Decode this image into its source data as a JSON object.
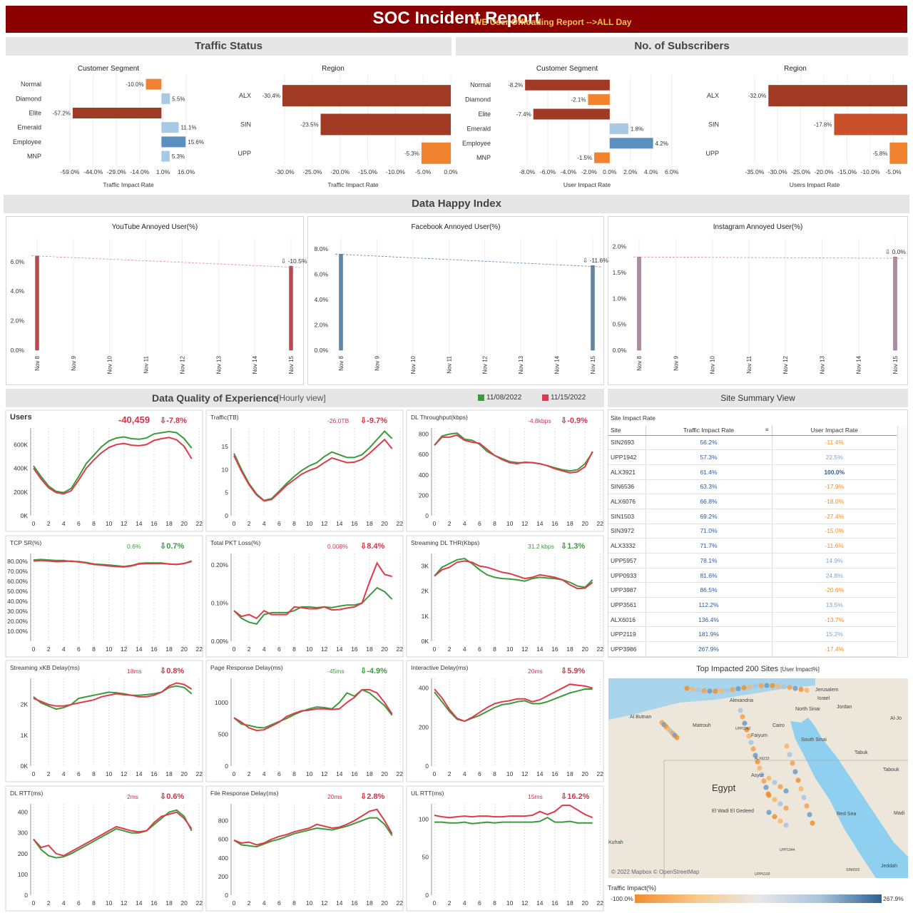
{
  "header": {
    "title": "SOC Incident Report",
    "subtitle": "WE User Offloading Report -->ALL Day"
  },
  "sections": {
    "traffic_status": "Traffic Status",
    "subscribers": "No. of Subscribers",
    "happy_index": "Data Happy Index",
    "qoe": "Data Quality of Experience",
    "qoe_sub": "[Hourly view]",
    "site_summary": "Site Summary View"
  },
  "legend": {
    "date1": "11/08/2022",
    "date2": "11/15/2022",
    "color1": "#3c9a3c",
    "color2": "#e03a4a"
  },
  "bar_panels": [
    {
      "title": "Customer Segment",
      "xlabel": "Traffic Impact Rate",
      "categories": [
        "Normal",
        "Diamond",
        "Elite",
        "Emerald",
        "Employee",
        "MNP"
      ],
      "values": [
        -10.0,
        5.5,
        -57.2,
        11.1,
        15.6,
        5.3
      ],
      "labels": [
        "-10.0%",
        "5.5%",
        "-57.2%",
        "11.1%",
        "15.6%",
        "5.3%"
      ],
      "ticks": [
        "-59.0%",
        "-44.0%",
        "-29.0%",
        "-14.0%",
        "1.0%",
        "16.0%"
      ],
      "xlim": [
        -59,
        21
      ]
    },
    {
      "title": "Region",
      "xlabel": "Traffic Impact Rate",
      "categories": [
        "ALX",
        "SIN",
        "UPP"
      ],
      "values": [
        -30.4,
        -23.5,
        -5.3
      ],
      "labels": [
        "-30.4%",
        "-23.5%",
        "-5.3%"
      ],
      "ticks": [
        "-30.0%",
        "-25.0%",
        "-20.0%",
        "-15.0%",
        "-10.0%",
        "-5.0%",
        "0.0%"
      ],
      "xlim": [
        -30.4,
        0
      ]
    },
    {
      "title": "Customer Segment",
      "xlabel": "User Impact Rate",
      "categories": [
        "Normal",
        "Diamond",
        "Elite",
        "Emerald",
        "Employee",
        "MNP"
      ],
      "values": [
        -8.2,
        -2.1,
        -7.4,
        1.8,
        4.2,
        -1.5
      ],
      "labels": [
        "-8.2%",
        "-2.1%",
        "-7.4%",
        "1.8%",
        "4.2%",
        "-1.5%"
      ],
      "ticks": [
        "-8.0%",
        "-6.0%",
        "-4.0%",
        "-2.0%",
        "0.0%",
        "2.0%",
        "4.0%",
        "6.0%"
      ],
      "xlim": [
        -8.9,
        6.3
      ]
    },
    {
      "title": "Region",
      "xlabel": "Users Impact Rate",
      "categories": [
        "ALX",
        "SIN",
        "UPP"
      ],
      "values": [
        -32.0,
        -17.8,
        -5.8
      ],
      "labels": [
        "-32.0%",
        "-17.8%",
        "-5.8%"
      ],
      "ticks": [
        "-35.0%",
        "-30.0%",
        "-25.0%",
        "-20.0%",
        "-15.0%",
        "-10.0%",
        "-5.0%"
      ],
      "xlim": [
        -36.2,
        -2
      ]
    }
  ],
  "annoyed_panels": [
    {
      "title": "YouTube Annoyed User(%)",
      "ticks": [
        "0.0%",
        "2.0%",
        "4.0%",
        "6.0%"
      ],
      "ymax": 7.2,
      "tickvals": [
        0,
        2,
        4,
        6
      ],
      "values": [
        6.4,
        5.7
      ],
      "change": "-10.5%",
      "color": "#c0474d"
    },
    {
      "title": "Facebook Annoyed User(%)",
      "ticks": [
        "0.0%",
        "2.0%",
        "4.0%",
        "6.0%",
        "8.0%"
      ],
      "ymax": 8.4,
      "tickvals": [
        0,
        2,
        4,
        6,
        8
      ],
      "values": [
        7.6,
        6.7
      ],
      "change": "-11.6%",
      "color": "#5f86ad"
    },
    {
      "title": "Instagram Annoyed User(%)",
      "ticks": [
        "0.0%",
        "0.5%",
        "1.0%",
        "1.5%",
        "2.0%"
      ],
      "ymax": 2.05,
      "tickvals": [
        0,
        0.5,
        1,
        1.5,
        2
      ],
      "values": [
        1.8,
        1.8
      ],
      "change": "0.0%",
      "color": "#b08aa0"
    }
  ],
  "annoyed_x": [
    "Nov 8",
    "Nov 9",
    "Nov 10",
    "Nov 11",
    "Nov 12",
    "Nov 13",
    "Nov 14",
    "Nov 15"
  ],
  "hours": [
    "0",
    "2",
    "4",
    "6",
    "8",
    "10",
    "12",
    "14",
    "16",
    "18",
    "20",
    "22"
  ],
  "kpis": [
    {
      "title": "Users",
      "delta": "-40,459",
      "pct": "-7.8%",
      "yticks": [
        "0K",
        "200K",
        "400K",
        "600K"
      ],
      "tickvals": [
        0,
        200,
        400,
        600
      ],
      "ymax": 740,
      "green": [
        420,
        330,
        250,
        205,
        195,
        230,
        330,
        440,
        510,
        580,
        630,
        655,
        665,
        650,
        645,
        655,
        690,
        700,
        710,
        700,
        650,
        570
      ],
      "red": [
        400,
        310,
        235,
        195,
        185,
        210,
        300,
        400,
        470,
        530,
        575,
        600,
        610,
        595,
        590,
        600,
        635,
        650,
        660,
        640,
        585,
        480
      ],
      "deltaColor": "#d0344a",
      "pctColor": "#d0344a",
      "big": true
    },
    {
      "title": "Traffic(TB)",
      "delta": "-26.0TB",
      "pct": "-9.7%",
      "yticks": [
        "0",
        "5",
        "10",
        "15"
      ],
      "tickvals": [
        0,
        5,
        10,
        15
      ],
      "ymax": 19,
      "green": [
        13.5,
        10,
        7,
        4.7,
        3.3,
        3.7,
        5.3,
        7,
        8.5,
        9.8,
        10.8,
        11.5,
        12.8,
        13.8,
        13.2,
        12.6,
        12.6,
        13.2,
        14.7,
        16.5,
        18.3,
        16.7
      ],
      "red": [
        13,
        9.6,
        6.7,
        4.5,
        3.2,
        3.5,
        5,
        6.6,
        7.8,
        9,
        9.8,
        10.4,
        11.5,
        12.5,
        12,
        11.5,
        11.6,
        12.2,
        13.5,
        15,
        16.5,
        14.5
      ],
      "deltaColor": "#d0344a",
      "pctColor": "#d0344a"
    },
    {
      "title": "DL Throughput(kbps)",
      "delta": "-4.8kbps",
      "pct": "-0.9%",
      "yticks": [
        "0",
        "200",
        "400",
        "600",
        "800"
      ],
      "tickvals": [
        0,
        200,
        400,
        600,
        800
      ],
      "ymax": 860,
      "green": [
        690,
        780,
        800,
        810,
        750,
        740,
        700,
        630,
        590,
        560,
        530,
        520,
        520,
        520,
        510,
        490,
        470,
        450,
        440,
        450,
        510,
        620
      ],
      "red": [
        690,
        770,
        770,
        790,
        740,
        720,
        710,
        650,
        590,
        550,
        520,
        510,
        525,
        520,
        510,
        490,
        460,
        440,
        420,
        430,
        480,
        630
      ],
      "deltaColor": "#d0344a",
      "pctColor": "#d0344a"
    },
    {
      "title": "TCP SR(%)",
      "delta": "0.6%",
      "pct": "0.7%",
      "yticks": [
        "10.00%",
        "20.00%",
        "30.00%",
        "40.00%",
        "50.00%",
        "60.00%",
        "70.00%",
        "80.00%"
      ],
      "tickvals": [
        10,
        20,
        30,
        40,
        50,
        60,
        70,
        80
      ],
      "ymax": 88,
      "green": [
        81.5,
        82,
        81.5,
        81,
        81,
        80,
        80,
        79,
        77.5,
        77,
        76.5,
        75.8,
        75,
        76,
        78,
        78.5,
        78.5,
        78.5,
        77.5,
        77,
        78,
        80.5
      ],
      "red": [
        80.5,
        81,
        80.5,
        79.8,
        80,
        80.5,
        79.5,
        78.5,
        77,
        76.5,
        75.5,
        75,
        74.5,
        75.5,
        77.5,
        78,
        78,
        78,
        77.5,
        77,
        78,
        80
      ],
      "deltaColor": "#3c9a3c",
      "pctColor": "#3c9a3c"
    },
    {
      "title": "Total PKT Loss(%)",
      "delta": "0.008%",
      "pct": "8.4%",
      "yticks": [
        "0.00%",
        "0.10%",
        "0.20%"
      ],
      "tickvals": [
        0,
        0.1,
        0.2
      ],
      "ymax": 0.23,
      "green": [
        0.08,
        0.06,
        0.05,
        0.045,
        0.07,
        0.075,
        0.075,
        0.075,
        0.08,
        0.09,
        0.09,
        0.088,
        0.09,
        0.088,
        0.092,
        0.095,
        0.095,
        0.1,
        0.12,
        0.14,
        0.13,
        0.11
      ],
      "red": [
        0.08,
        0.065,
        0.07,
        0.06,
        0.08,
        0.07,
        0.07,
        0.07,
        0.09,
        0.088,
        0.085,
        0.085,
        0.09,
        0.082,
        0.083,
        0.087,
        0.09,
        0.1,
        0.155,
        0.205,
        0.175,
        0.17
      ],
      "deltaColor": "#d0344a",
      "pctColor": "#d0344a"
    },
    {
      "title": "Streaming DL THR(Kbps)",
      "delta": "31.2 kbps",
      "pct": "1.3%",
      "yticks": [
        "0K",
        "1K",
        "2K",
        "3K"
      ],
      "tickvals": [
        0,
        1000,
        2000,
        3000
      ],
      "ymax": 3500,
      "green": [
        2600,
        2950,
        3100,
        3250,
        3300,
        3100,
        2850,
        2650,
        2550,
        2500,
        2480,
        2450,
        2400,
        2500,
        2550,
        2520,
        2500,
        2450,
        2350,
        2200,
        2150,
        2450
      ],
      "red": [
        2600,
        2850,
        2950,
        3150,
        3200,
        3150,
        3000,
        2950,
        2850,
        2750,
        2700,
        2600,
        2500,
        2550,
        2650,
        2600,
        2550,
        2450,
        2250,
        2100,
        2120,
        2350
      ],
      "deltaColor": "#3c9a3c",
      "pctColor": "#3c9a3c"
    },
    {
      "title": "Streaming xKB Delay(ms)",
      "delta": "18ms",
      "pct": "0.8%",
      "yticks": [
        "0K",
        "1K",
        "2K"
      ],
      "tickvals": [
        0,
        1000,
        2000
      ],
      "ymax": 2850,
      "green": [
        2250,
        2050,
        1950,
        1850,
        1900,
        2000,
        2200,
        2250,
        2300,
        2350,
        2400,
        2380,
        2350,
        2300,
        2300,
        2320,
        2350,
        2400,
        2550,
        2600,
        2550,
        2350
      ],
      "red": [
        2200,
        2100,
        2000,
        1950,
        1950,
        2000,
        2050,
        2100,
        2150,
        2250,
        2300,
        2350,
        2320,
        2300,
        2250,
        2250,
        2300,
        2400,
        2600,
        2700,
        2650,
        2500
      ],
      "deltaColor": "#d0344a",
      "pctColor": "#d0344a"
    },
    {
      "title": "Page Response Delay(ms)",
      "delta": "-45ms",
      "pct": "-4.9%",
      "yticks": [
        "0",
        "500",
        "1000"
      ],
      "tickvals": [
        0,
        500,
        1000
      ],
      "ymax": 1380,
      "green": [
        760,
        660,
        640,
        610,
        600,
        650,
        700,
        750,
        810,
        860,
        900,
        930,
        920,
        900,
        1000,
        1150,
        1100,
        1200,
        1150,
        1050,
        950,
        800
      ],
      "red": [
        760,
        690,
        600,
        560,
        570,
        630,
        690,
        780,
        830,
        870,
        880,
        900,
        900,
        890,
        900,
        1000,
        1080,
        1200,
        1200,
        1150,
        1000,
        820
      ],
      "deltaColor": "#3c9a3c",
      "pctColor": "#3c9a3c"
    },
    {
      "title": "Interactive Delay(ms)",
      "delta": "20ms",
      "pct": "5.9%",
      "yticks": [
        "0",
        "200",
        "400"
      ],
      "tickvals": [
        0,
        200,
        400
      ],
      "ymax": 450,
      "green": [
        380,
        330,
        280,
        240,
        230,
        245,
        260,
        280,
        300,
        315,
        320,
        330,
        335,
        320,
        320,
        330,
        345,
        360,
        375,
        385,
        395,
        395
      ],
      "red": [
        395,
        350,
        290,
        245,
        230,
        250,
        275,
        300,
        320,
        330,
        335,
        345,
        345,
        330,
        340,
        360,
        380,
        400,
        420,
        415,
        410,
        400
      ],
      "deltaColor": "#d0344a",
      "pctColor": "#d0344a"
    },
    {
      "title": "DL RTT(ms)",
      "delta": "2ms",
      "pct": "0.6%",
      "yticks": [
        "0",
        "100",
        "200",
        "300",
        "400"
      ],
      "tickvals": [
        0,
        100,
        200,
        300,
        400
      ],
      "ymax": 440,
      "green": [
        270,
        220,
        190,
        180,
        185,
        200,
        220,
        240,
        260,
        280,
        300,
        320,
        310,
        300,
        300,
        310,
        340,
        370,
        400,
        410,
        380,
        310
      ],
      "red": [
        270,
        230,
        240,
        200,
        190,
        210,
        230,
        250,
        270,
        290,
        310,
        330,
        320,
        310,
        305,
        310,
        350,
        380,
        390,
        400,
        370,
        320
      ],
      "deltaColor": "#d0344a",
      "pctColor": "#d0344a"
    },
    {
      "title": "File Response Delay(ms)",
      "delta": "20ms",
      "pct": "2.8%",
      "yticks": [
        "0",
        "200",
        "400",
        "600",
        "800"
      ],
      "tickvals": [
        0,
        200,
        400,
        600,
        800
      ],
      "ymax": 980,
      "green": [
        590,
        540,
        530,
        520,
        550,
        580,
        600,
        630,
        660,
        680,
        700,
        720,
        710,
        700,
        720,
        740,
        770,
        800,
        830,
        830,
        760,
        640
      ],
      "red": [
        590,
        560,
        570,
        540,
        560,
        600,
        630,
        650,
        680,
        700,
        720,
        760,
        740,
        720,
        730,
        760,
        800,
        850,
        900,
        920,
        800,
        660
      ],
      "deltaColor": "#d0344a",
      "pctColor": "#d0344a"
    },
    {
      "title": "UL RTT(ms)",
      "delta": "15ms",
      "pct": "16.2%",
      "yticks": [
        "0",
        "50",
        "100"
      ],
      "tickvals": [
        0,
        50,
        100
      ],
      "ymax": 120,
      "green": [
        96,
        96,
        95,
        95,
        96,
        94,
        95,
        96,
        95,
        96,
        96,
        96,
        96,
        96,
        97,
        102,
        96,
        96,
        97,
        95,
        95,
        95
      ],
      "red": [
        105,
        103,
        102,
        103,
        104,
        103,
        104,
        104,
        103,
        103,
        104,
        104,
        104,
        105,
        110,
        106,
        110,
        118,
        118,
        112,
        106,
        102
      ],
      "deltaColor": "#d0344a",
      "pctColor": "#d0344a"
    }
  ],
  "site_table": {
    "caption": "Site Impact Rate",
    "headers": [
      "Site",
      "Traffic Impact Rate",
      "User Impact Rate"
    ],
    "rows": [
      [
        "SIN2693",
        "56.2%",
        "-11.4%"
      ],
      [
        "UPP1942",
        "57.3%",
        "22.5%"
      ],
      [
        "ALX3921",
        "61.4%",
        "100.0%"
      ],
      [
        "SIN6536",
        "63.3%",
        "-17.9%"
      ],
      [
        "ALX6076",
        "66.8%",
        "-18.0%"
      ],
      [
        "SIN1503",
        "69.2%",
        "-27.4%"
      ],
      [
        "SIN3972",
        "71.0%",
        "-15.0%"
      ],
      [
        "ALX3332",
        "71.7%",
        "-11.6%"
      ],
      [
        "UPP5957",
        "78.1%",
        "14.9%"
      ],
      [
        "UPP0933",
        "81.6%",
        "24.8%"
      ],
      [
        "UPP3987",
        "86.5%",
        "-20.6%"
      ],
      [
        "UPP3561",
        "112.2%",
        "13.5%"
      ],
      [
        "ALX6016",
        "136.4%",
        "-13.7%"
      ],
      [
        "UPP2119",
        "181.9%",
        "15.2%"
      ],
      [
        "UPP3986",
        "267.9%",
        "-17.4%"
      ]
    ]
  },
  "map": {
    "title": "Top Impacted 200 Sites",
    "title_sub": "[User Impact%]",
    "places": [
      "Jerusalem",
      "Israel",
      "Jordan",
      "Alexandria",
      "North Sinai",
      "Al Butnan",
      "Matrouh",
      "Cairo",
      "Faiyum",
      "South Sinai",
      "Tabuk",
      "Al-Jo",
      "Asyut",
      "Egypt",
      "El Wadi El Gedeed",
      "Red Sea",
      "Tabouk",
      "Kufrah",
      "Jeddah",
      "Madi"
    ],
    "site_labels": [
      "UPP2342",
      "ALX6215",
      "UPP1944",
      "UPP6100",
      "SIN6502"
    ],
    "attribution": "© 2022 Mapbox © OpenStreetMap",
    "legend_title": "Traffic Impact(%)",
    "legend_min": "-100.0%",
    "legend_max": "267.9%"
  }
}
